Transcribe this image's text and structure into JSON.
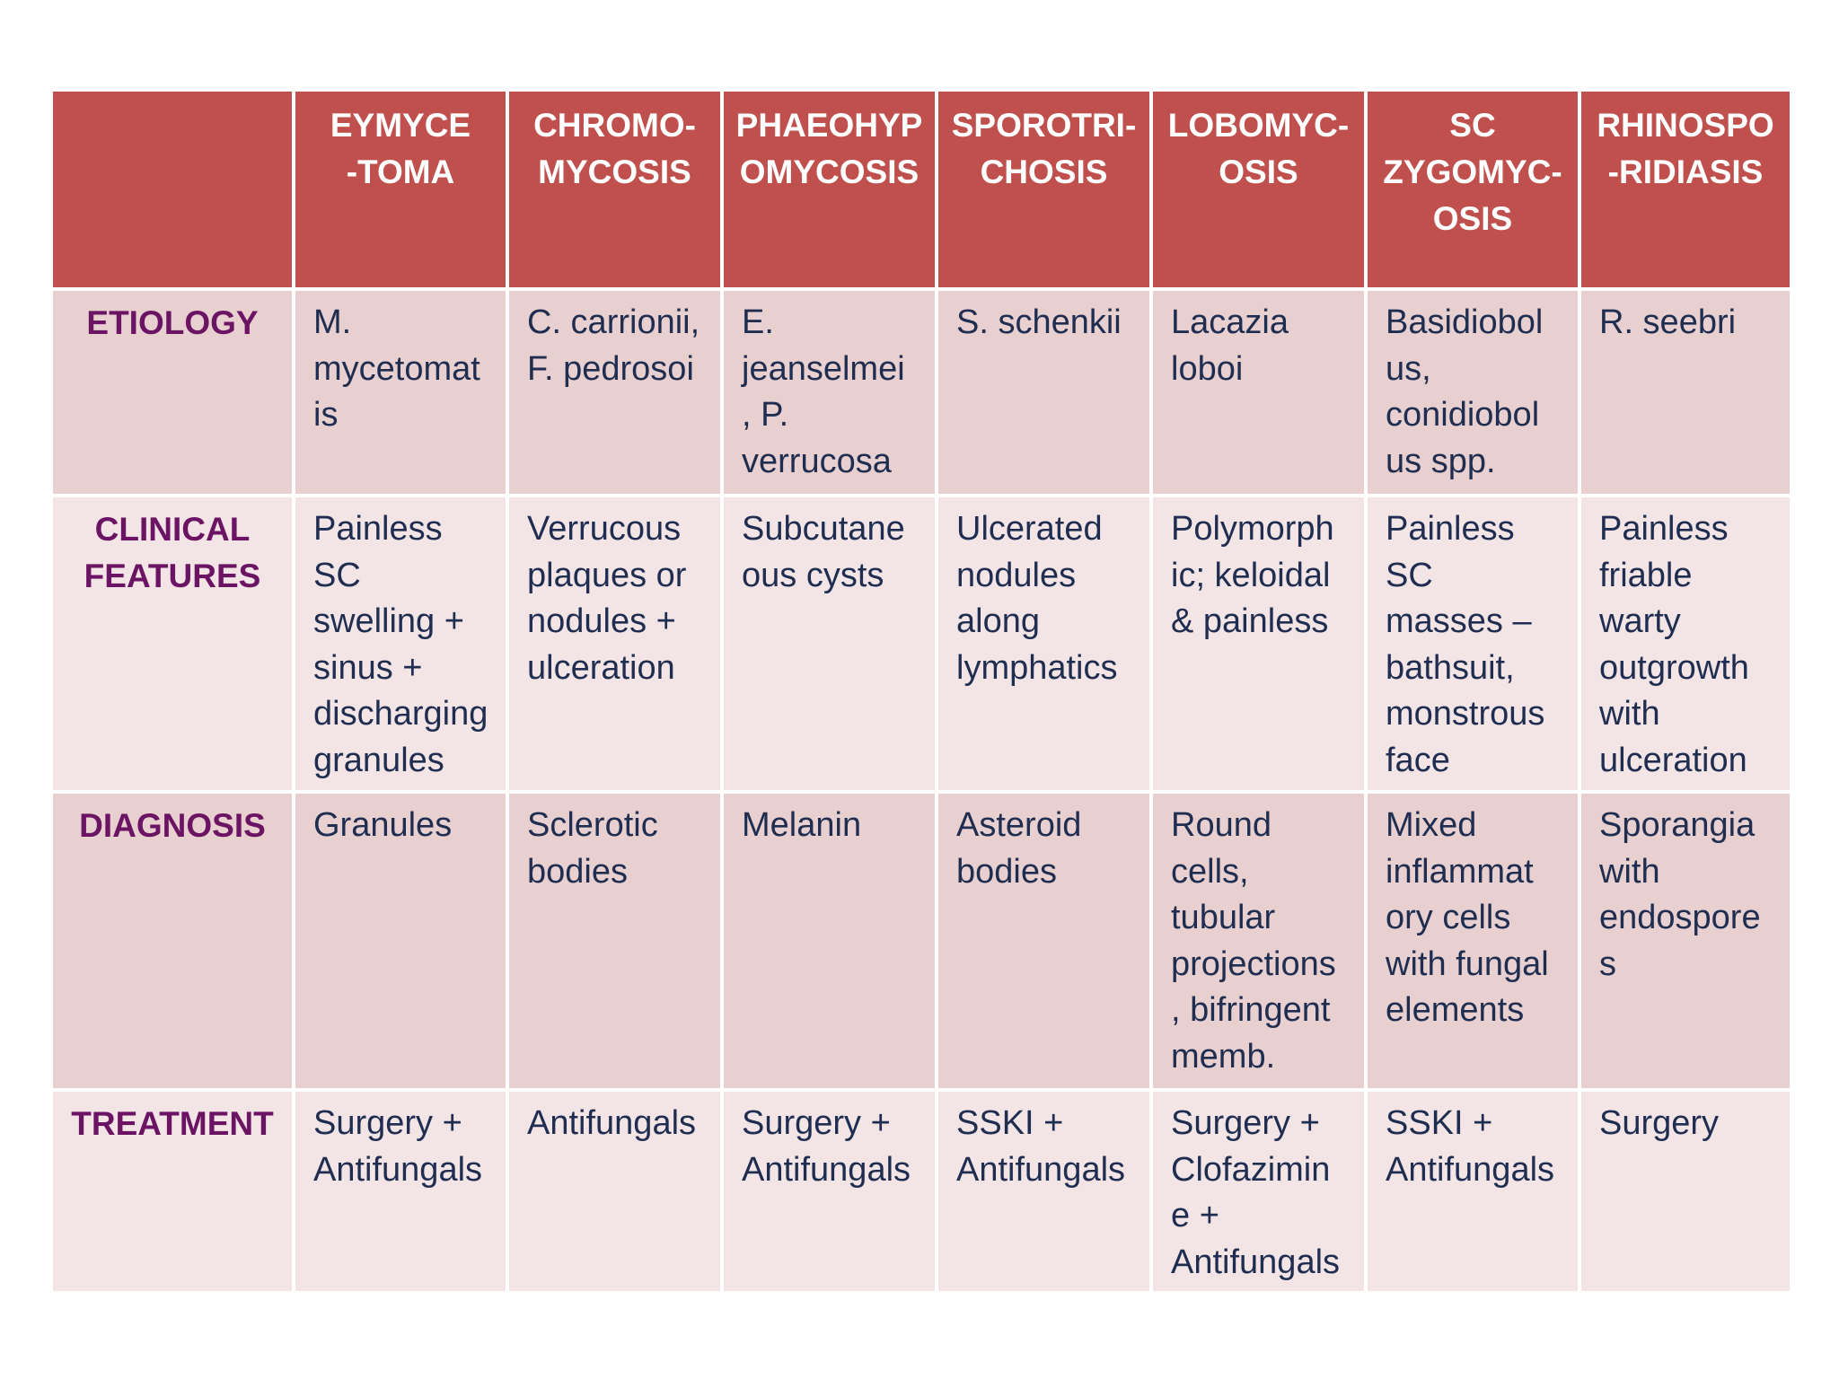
{
  "columns": [
    "EYMYCE\n-TOMA",
    "CHROMO-\nMYCOSIS",
    "PHAEOHYP\nOMYCOSIS",
    "SPOROTRI-\nCHOSIS",
    "LOBOMYC-\nOSIS",
    "SC\nZYGOMYC-\nOSIS",
    "RHINOSPO\n-RIDIASIS"
  ],
  "rows": [
    {
      "label": "ETIOLOGY",
      "cells": [
        "M.\nmycetomat\nis",
        "C. carrionii,\nF. pedrosoi",
        "E.\njeanselmei\n, P.\nverrucosa",
        "S. schenkii",
        "Lacazia\nloboi",
        "Basidiobol\nus,\nconidiobol\nus spp.",
        "R. seebri"
      ]
    },
    {
      "label": "CLINICAL\nFEATURES",
      "cells": [
        "Painless SC\nswelling +\nsinus +\ndischarging\ngranules",
        "Verrucous\nplaques or\nnodules +\nulceration",
        "Subcutane\nous cysts",
        "Ulcerated\nnodules\nalong\nlymphatics",
        "Polymorph\nic; keloidal\n& painless",
        "Painless SC\nmasses –\nbathsuit,\nmonstrous\nface",
        "Painless\nfriable\nwarty\noutgrowth\nwith\nulceration"
      ]
    },
    {
      "label": "DIAGNOSIS",
      "cells": [
        "Granules",
        "Sclerotic\nbodies",
        "Melanin",
        "Asteroid\nbodies",
        "Round\ncells,\ntubular\nprojections\n, bifringent\nmemb.",
        "Mixed\ninflammat\nory cells\nwith fungal\nelements",
        "Sporangia\nwith\nendospore\ns"
      ]
    },
    {
      "label": "TREATMENT",
      "cells": [
        "Surgery +\nAntifungals",
        "Antifungals",
        "Surgery +\nAntifungals",
        "SSKI +\nAntifungals",
        "Surgery +\nClofazimin\ne +\nAntifungals",
        "SSKI +\nAntifungals",
        "Surgery"
      ]
    }
  ],
  "colors": {
    "header_bg": "#c0504d",
    "header_text": "#ffffff",
    "row_label_text": "#6b1464",
    "cell_text": "#1f2e50",
    "row_dark_bg": "#e8cfd0",
    "row_light_bg": "#f3e5e6"
  }
}
